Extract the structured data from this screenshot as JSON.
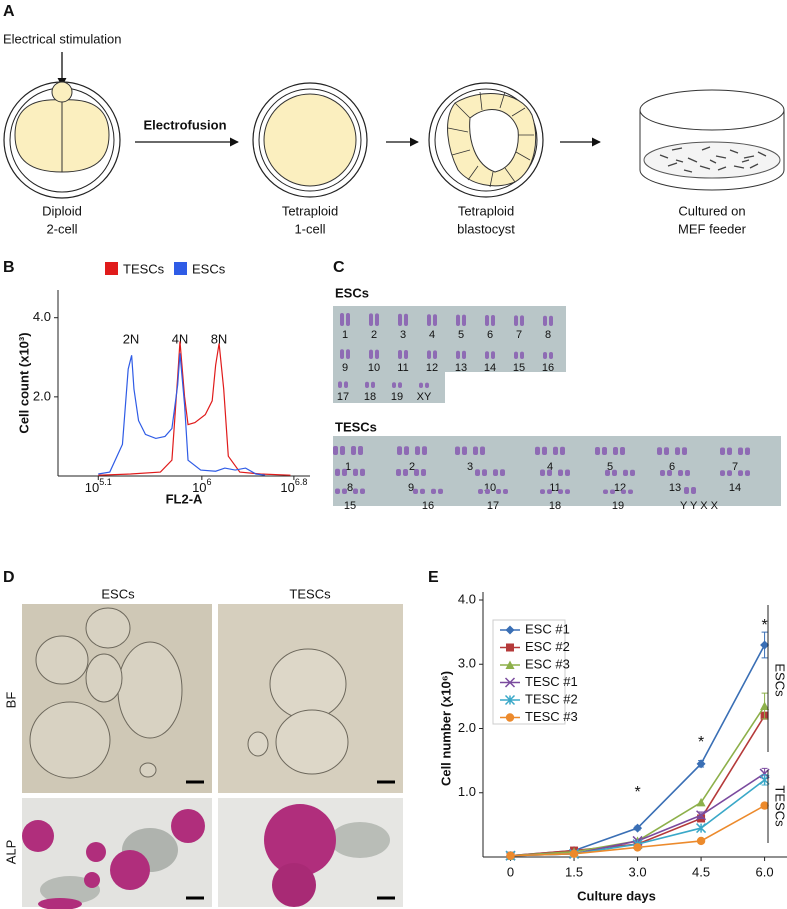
{
  "panel_labels": [
    "A",
    "B",
    "C",
    "D",
    "E"
  ],
  "diagram": {
    "stimulus": "Electrical stimulation",
    "step": "Electrofusion",
    "stages": [
      {
        "lines": [
          "Diploid",
          "2-cell"
        ]
      },
      {
        "lines": [
          "Tetraploid",
          "1-cell"
        ]
      },
      {
        "lines": [
          "Tetraploid",
          "blastocyst"
        ]
      },
      {
        "lines": [
          "Cultured on",
          "MEF feeder"
        ]
      }
    ]
  },
  "karyotype": {
    "escs": {
      "title": "ESCs",
      "labels": [
        "1",
        "2",
        "3",
        "4",
        "5",
        "6",
        "7",
        "8",
        "9",
        "10",
        "11",
        "12",
        "13",
        "14",
        "15",
        "16",
        "17",
        "18",
        "19",
        "XY"
      ]
    },
    "tescs": {
      "title": "TESCs",
      "labels": [
        "1",
        "2",
        "3",
        "4",
        "5",
        "6",
        "7",
        "8",
        "9",
        "10",
        "11",
        "12",
        "13",
        "14",
        "15",
        "16",
        "17",
        "18",
        "19",
        "Y Y X X"
      ]
    }
  },
  "micrographs": {
    "columns": [
      "ESCs",
      "TESCs"
    ],
    "rows": [
      "BF",
      "ALP"
    ]
  },
  "chart_data": [
    {
      "type": "line",
      "ylabel": "Cell count (x10³)",
      "xlabel": "FL2-A",
      "xlim": [
        4.75,
        6.94
      ],
      "xticks": [
        {
          "value": 5.1,
          "label": "10",
          "exponent": "5.1"
        },
        {
          "value": 6,
          "label": "10",
          "exponent": "6"
        },
        {
          "value": 6.8,
          "label": "10",
          "exponent": "6.8"
        }
      ],
      "ylim": [
        0,
        4.7
      ],
      "yticks": [
        {
          "value": 2,
          "label": "2.0"
        },
        {
          "value": 4,
          "label": "4.0"
        }
      ],
      "legend": "top",
      "annotations": [
        "2N",
        "4N",
        "8N"
      ],
      "series": [
        {
          "name": "TESCs",
          "color": "#e01b1b",
          "x": [
            5.1,
            5.38,
            5.64,
            5.74,
            5.79,
            5.81,
            5.85,
            5.88,
            5.94,
            6.03,
            6.09,
            6.12,
            6.15,
            6.19,
            6.23,
            6.33,
            6.51,
            6.77
          ],
          "values": [
            0.02,
            0.05,
            0.1,
            0.4,
            2.5,
            3.4,
            2.0,
            1.3,
            1.35,
            1.55,
            1.9,
            2.8,
            3.35,
            2.2,
            0.5,
            0.1,
            0.05,
            0.02
          ]
        },
        {
          "name": "ESCs",
          "color": "#2f5ce6",
          "x": [
            5.1,
            5.2,
            5.31,
            5.36,
            5.39,
            5.41,
            5.45,
            5.51,
            5.6,
            5.68,
            5.74,
            5.79,
            5.81,
            5.85,
            5.88,
            5.99,
            6.12,
            6.2,
            6.29,
            6.38,
            6.47,
            6.55
          ],
          "values": [
            0.05,
            0.1,
            0.8,
            2.7,
            3.05,
            2.2,
            1.4,
            1.05,
            0.95,
            1.0,
            1.2,
            2.3,
            3.1,
            1.8,
            0.4,
            0.15,
            0.12,
            0.2,
            0.15,
            0.2,
            0.05,
            0.02
          ]
        }
      ]
    },
    {
      "type": "line",
      "xlabel": "Culture days",
      "ylabel": "Cell number (x10⁶)",
      "x": [
        0,
        1.5,
        3,
        4.5,
        6
      ],
      "xlim": [
        -0.65,
        6.6
      ],
      "xticks": [
        0,
        1.5,
        {
          "value": 3,
          "label": "3.0"
        },
        4.5,
        {
          "value": 6,
          "label": "6.0"
        }
      ],
      "ylim": [
        0,
        4.0
      ],
      "yticks": [
        {
          "value": 1,
          "label": "1.0"
        },
        {
          "value": 2,
          "label": "2.0"
        },
        {
          "value": 3,
          "label": "3.0"
        },
        {
          "value": 4,
          "label": "4.0"
        }
      ],
      "legend": "upper left",
      "annotations": [
        {
          "text": "*",
          "x": 3,
          "y": 1.0
        },
        {
          "text": "*",
          "x": 4.5,
          "y": 1.78
        },
        {
          "text": "*",
          "x": 6,
          "y": 3.6
        }
      ],
      "group_labels": [
        "ESCs",
        "TESCs"
      ],
      "series": [
        {
          "name": "ESC #1",
          "color": "#3a6fb5",
          "marker": "diamond",
          "values": [
            0.02,
            0.1,
            0.45,
            1.45,
            3.3
          ],
          "errors": [
            null,
            null,
            0.03,
            0.05,
            0.2
          ]
        },
        {
          "name": "ESC #2",
          "color": "#b53a3a",
          "marker": "square",
          "values": [
            0.02,
            0.1,
            0.2,
            0.6,
            2.2
          ],
          "errors": [
            null,
            null,
            null,
            null,
            null
          ]
        },
        {
          "name": "ESC #3",
          "color": "#8db04a",
          "marker": "triangle",
          "values": [
            0.02,
            0.08,
            0.25,
            0.85,
            2.35
          ],
          "errors": [
            null,
            null,
            null,
            null,
            0.2
          ]
        },
        {
          "name": "TESC #1",
          "color": "#7a4a9e",
          "marker": "x",
          "values": [
            0.02,
            0.05,
            0.25,
            0.65,
            1.3
          ],
          "errors": [
            null,
            null,
            null,
            0.05,
            0.08
          ]
        },
        {
          "name": "TESC #2",
          "color": "#3aa8c8",
          "marker": "star",
          "values": [
            0.02,
            0.05,
            0.2,
            0.45,
            1.2
          ],
          "errors": [
            null,
            null,
            null,
            null,
            0.08
          ]
        },
        {
          "name": "TESC #3",
          "color": "#ec8a2c",
          "marker": "circle",
          "values": [
            0.02,
            0.05,
            0.15,
            0.25,
            0.8
          ],
          "errors": [
            null,
            null,
            null,
            null,
            null
          ]
        }
      ]
    }
  ]
}
